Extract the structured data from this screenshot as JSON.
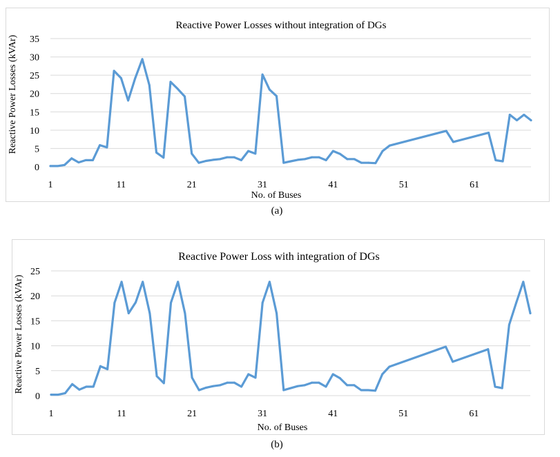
{
  "colors": {
    "series": "#5b9bd5",
    "grid": "#d9d9d9",
    "border": "#d9d9d9"
  },
  "chart_data": [
    {
      "type": "line",
      "caption": "(a)",
      "title": "Reactive Power Losses without integration of DGs",
      "xlabel": "No. of Buses",
      "ylabel": "Reactive Power Losses (kVAr)",
      "ylim": [
        0,
        35
      ],
      "yticks": [
        0,
        5,
        10,
        15,
        20,
        25,
        30,
        35
      ],
      "xticks": [
        1,
        11,
        21,
        31,
        41,
        51,
        61
      ],
      "grid": true,
      "legend": "none",
      "x": [
        1,
        2,
        3,
        4,
        5,
        6,
        7,
        8,
        9,
        10,
        11,
        12,
        13,
        14,
        15,
        16,
        17,
        18,
        19,
        20,
        21,
        22,
        23,
        24,
        25,
        26,
        27,
        28,
        29,
        30,
        31,
        32,
        33,
        34,
        35,
        36,
        37,
        38,
        39,
        40,
        41,
        42,
        43,
        44,
        45,
        46,
        47,
        48,
        49,
        57,
        58,
        63,
        64,
        65,
        66,
        67,
        68,
        69
      ],
      "values": [
        0.2,
        0.2,
        0.5,
        2.3,
        1.2,
        1.8,
        1.8,
        5.9,
        5.3,
        26.2,
        24.2,
        18.1,
        24.2,
        29.4,
        22.3,
        3.9,
        2.5,
        23.2,
        21.3,
        19.2,
        3.6,
        1.1,
        1.6,
        1.9,
        2.1,
        2.6,
        2.6,
        1.8,
        4.3,
        3.6,
        25.2,
        21.1,
        19.3,
        1.1,
        1.5,
        1.9,
        2.1,
        2.6,
        2.6,
        1.8,
        4.3,
        3.5,
        2.1,
        2.1,
        1.1,
        1.1,
        1.0,
        4.3,
        5.8,
        9.8,
        6.8,
        9.3,
        1.8,
        1.5,
        14.2,
        12.7,
        14.2,
        12.7
      ]
    },
    {
      "type": "line",
      "caption": "(b)",
      "title": "Reactive Power Loss with integration of DGs",
      "xlabel": "No. of Buses",
      "ylabel": "Reactive Power Losses (kVAr)",
      "ylim": [
        0,
        25
      ],
      "yticks": [
        0,
        5,
        10,
        15,
        20,
        25
      ],
      "xticks": [
        1,
        11,
        21,
        31,
        41,
        51,
        61
      ],
      "grid": true,
      "legend": "none",
      "x": [
        1,
        2,
        3,
        4,
        5,
        6,
        7,
        8,
        9,
        10,
        11,
        12,
        13,
        14,
        15,
        16,
        17,
        18,
        19,
        20,
        21,
        22,
        23,
        24,
        25,
        26,
        27,
        28,
        29,
        30,
        31,
        32,
        33,
        34,
        35,
        36,
        37,
        38,
        39,
        40,
        41,
        42,
        43,
        44,
        45,
        46,
        47,
        48,
        49,
        57,
        58,
        63,
        64,
        65,
        66,
        67,
        68,
        69
      ],
      "values": [
        0.2,
        0.2,
        0.5,
        2.3,
        1.2,
        1.8,
        1.8,
        5.9,
        5.3,
        18.6,
        22.8,
        16.5,
        18.7,
        22.8,
        16.5,
        3.9,
        2.5,
        18.6,
        22.8,
        16.5,
        3.6,
        1.1,
        1.6,
        1.9,
        2.1,
        2.6,
        2.6,
        1.8,
        4.3,
        3.6,
        18.6,
        22.8,
        16.5,
        1.1,
        1.5,
        1.9,
        2.1,
        2.6,
        2.6,
        1.8,
        4.3,
        3.5,
        2.1,
        2.1,
        1.1,
        1.1,
        1.0,
        4.3,
        5.8,
        9.8,
        6.8,
        9.3,
        1.8,
        1.5,
        14.2,
        18.6,
        22.8,
        16.5
      ]
    }
  ]
}
